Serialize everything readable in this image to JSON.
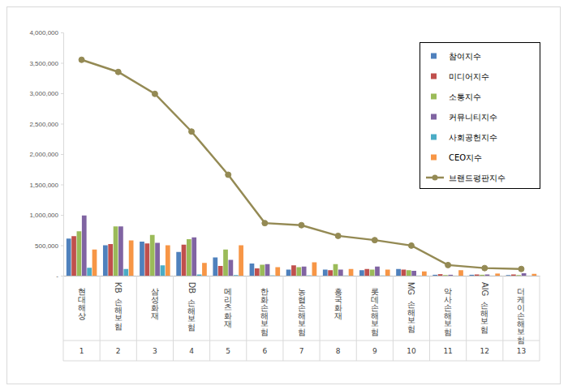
{
  "chart_data": {
    "type": "bar",
    "categories": [
      "현대해상",
      "KB손해보험",
      "삼성화재",
      "DB손해보험",
      "메리츠화재",
      "한화손해보험",
      "농협손해보험",
      "흥국화재",
      "롯데손해보험",
      "MG손해보험",
      "악사손해보험",
      "AIG손해보험",
      "더케이손해보험"
    ],
    "rank_labels": [
      "1",
      "2",
      "3",
      "4",
      "5",
      "6",
      "7",
      "8",
      "9",
      "10",
      "11",
      "12",
      "13"
    ],
    "series": [
      {
        "name": "참여지수",
        "type": "bar",
        "color": "#4f81bd",
        "values": [
          610000,
          500000,
          560000,
          390000,
          300000,
          200000,
          100000,
          100000,
          90000,
          110000,
          15000,
          15000,
          10000
        ]
      },
      {
        "name": "미디어지수",
        "type": "bar",
        "color": "#c0504d",
        "values": [
          650000,
          520000,
          530000,
          510000,
          160000,
          120000,
          170000,
          90000,
          110000,
          100000,
          25000,
          20000,
          20000
        ]
      },
      {
        "name": "소통지수",
        "type": "bar",
        "color": "#9bbb59",
        "values": [
          730000,
          810000,
          670000,
          600000,
          430000,
          180000,
          140000,
          190000,
          100000,
          90000,
          10000,
          15000,
          10000
        ]
      },
      {
        "name": "커뮤니티지수",
        "type": "bar",
        "color": "#8064a2",
        "values": [
          990000,
          810000,
          540000,
          630000,
          260000,
          190000,
          150000,
          100000,
          150000,
          80000,
          15000,
          20000,
          40000
        ]
      },
      {
        "name": "사회공헌지수",
        "type": "bar",
        "color": "#4bacc6",
        "values": [
          130000,
          110000,
          170000,
          20000,
          10000,
          5000,
          5000,
          3000,
          3000,
          2000,
          1000,
          1000,
          1000
        ]
      },
      {
        "name": "CEO지수",
        "type": "bar",
        "color": "#f79646",
        "values": [
          430000,
          580000,
          500000,
          210000,
          500000,
          140000,
          220000,
          110000,
          100000,
          70000,
          90000,
          35000,
          30000
        ]
      },
      {
        "name": "브랜드평판지수",
        "type": "line",
        "color": "#948a54",
        "marker": "circle",
        "values": [
          3550000,
          3350000,
          2990000,
          2370000,
          1660000,
          865000,
          830000,
          655000,
          585000,
          495000,
          175000,
          125000,
          110000
        ]
      }
    ],
    "ylim": [
      0,
      4000000
    ],
    "yticks": [
      {
        "value": 0,
        "label": "-"
      },
      {
        "value": 500000,
        "label": "500,000"
      },
      {
        "value": 1000000,
        "label": "1,000,000"
      },
      {
        "value": 1500000,
        "label": "1,500,000"
      },
      {
        "value": 2000000,
        "label": "2,000,000"
      },
      {
        "value": 2500000,
        "label": "2,500,000"
      },
      {
        "value": 3000000,
        "label": "3,000,000"
      },
      {
        "value": 3500000,
        "label": "3,500,000"
      },
      {
        "value": 4000000,
        "label": "4,000,000"
      }
    ],
    "grid": false,
    "legend": "upper right"
  }
}
